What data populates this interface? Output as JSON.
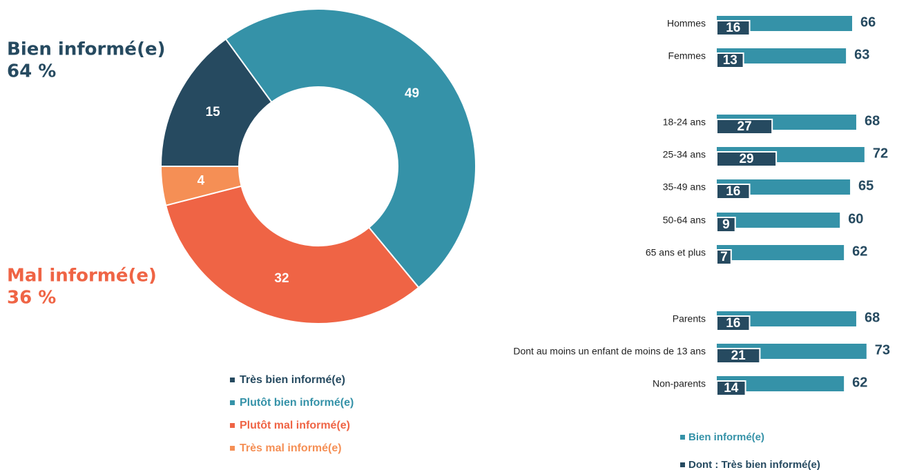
{
  "chart_data": [
    {
      "type": "donut",
      "annotations": [
        {
          "title": "Bien informé(e)",
          "value": "64 %",
          "color": "#264a60"
        },
        {
          "title": "Mal informé(e)",
          "value": "36 %",
          "color": "#ef6445"
        }
      ],
      "categories": [
        "Très bien informé(e)",
        "Plutôt bien informé(e)",
        "Plutôt mal informé(e)",
        "Très mal informé(e)"
      ],
      "values": [
        15,
        49,
        32,
        4
      ],
      "colors": [
        "#264a60",
        "#3592a8",
        "#ef6445",
        "#f58f55"
      ]
    },
    {
      "type": "hbar_overlap",
      "categories": [
        "Hommes",
        "Femmes",
        "18-24 ans",
        "25-34 ans",
        "35-49 ans",
        "50-64 ans",
        "65 ans et plus",
        "Parents",
        "Dont au moins un enfant de moins de 13 ans",
        "Non-parents"
      ],
      "series": [
        {
          "name": "Bien informé(e)",
          "color": "#3592a8",
          "values": [
            66,
            63,
            68,
            72,
            65,
            60,
            62,
            68,
            73,
            62
          ]
        },
        {
          "name": "Dont : Très bien informé(e)",
          "color": "#264a60",
          "values": [
            16,
            13,
            27,
            29,
            16,
            9,
            7,
            16,
            21,
            14
          ]
        }
      ]
    }
  ]
}
